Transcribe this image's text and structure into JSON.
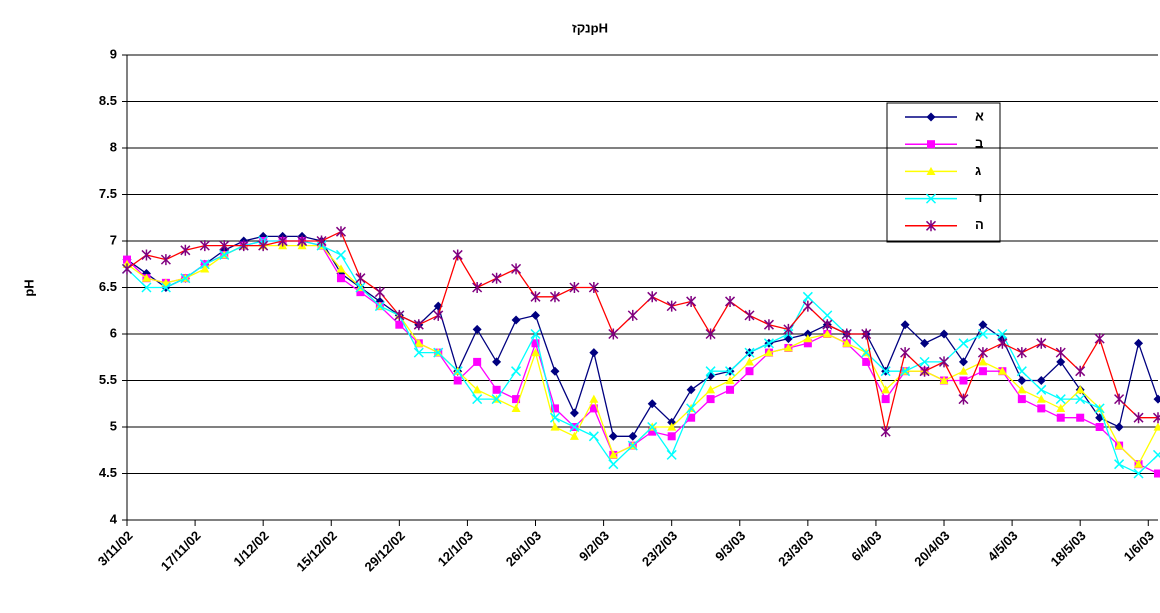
{
  "chart_data": {
    "type": "line",
    "title": "נקזpH",
    "ylabel": "pH",
    "x": [
      "3/11/02",
      "7/11/02",
      "11/11/02",
      "15/11/02",
      "19/11/02",
      "23/11/02",
      "27/11/02",
      "1/12/02",
      "5/12/02",
      "9/12/02",
      "13/12/02",
      "17/12/02",
      "21/12/02",
      "25/12/02",
      "29/12/02",
      "2/1/03",
      "6/1/03",
      "10/1/03",
      "14/1/03",
      "18/1/03",
      "22/1/03",
      "26/1/03",
      "30/1/03",
      "3/2/03",
      "7/2/03",
      "11/2/03",
      "15/2/03",
      "19/2/03",
      "23/2/03",
      "27/2/03",
      "3/3/03",
      "7/3/03",
      "11/3/03",
      "15/3/03",
      "19/3/03",
      "23/3/03",
      "27/3/03",
      "31/3/03",
      "4/4/03",
      "8/4/03",
      "12/4/03",
      "16/4/03",
      "20/4/03",
      "24/4/03",
      "28/4/03",
      "2/5/03",
      "6/5/03",
      "10/5/03",
      "14/5/03",
      "18/5/03",
      "22/5/03",
      "26/5/03",
      "30/5/03",
      "3/6/03"
    ],
    "xlim": [
      "3/11/02",
      "3/6/03"
    ],
    "xticks": [
      "3/11/02",
      "17/11/02",
      "1/12/02",
      "15/12/02",
      "29/12/02",
      "12/1/03",
      "26/1/03",
      "9/2/03",
      "23/2/03",
      "9/3/03",
      "23/3/03",
      "6/4/03",
      "20/4/03",
      "4/5/03",
      "18/5/03",
      "1/6/03"
    ],
    "ylim": [
      4,
      9
    ],
    "yticks": [
      4,
      4.5,
      5,
      5.5,
      6,
      6.5,
      7,
      7.5,
      8,
      8.5,
      9
    ],
    "grid": true,
    "legend": "upper-right",
    "series": [
      {
        "name": "א",
        "color": "#000080",
        "marker_color": "#000080",
        "marker": "diamond",
        "values": [
          6.8,
          6.65,
          6.5,
          6.6,
          6.75,
          6.9,
          7.0,
          7.05,
          7.05,
          7.05,
          7.0,
          6.65,
          6.5,
          6.35,
          6.2,
          6.1,
          6.3,
          5.6,
          6.05,
          5.7,
          6.15,
          6.2,
          5.6,
          5.15,
          5.8,
          4.9,
          4.9,
          5.25,
          5.05,
          5.4,
          5.55,
          5.6,
          5.8,
          5.9,
          5.95,
          6.0,
          6.1,
          6.0,
          6.0,
          5.6,
          6.1,
          5.9,
          6.0,
          5.7,
          6.1,
          5.95,
          5.5,
          5.5,
          5.7,
          5.4,
          5.1,
          5.0,
          5.9,
          5.3
        ]
      },
      {
        "name": "ב",
        "color": "#ff00ff",
        "marker_color": "#ff00ff",
        "marker": "square",
        "values": [
          6.8,
          6.6,
          6.55,
          6.6,
          6.75,
          6.85,
          6.95,
          7.0,
          7.0,
          7.0,
          6.95,
          6.6,
          6.45,
          6.3,
          6.1,
          5.9,
          5.8,
          5.5,
          5.7,
          5.4,
          5.3,
          5.9,
          5.2,
          5.0,
          5.2,
          4.7,
          4.8,
          4.95,
          4.9,
          5.1,
          5.3,
          5.4,
          5.6,
          5.8,
          5.85,
          5.9,
          6.0,
          5.9,
          5.7,
          5.3,
          5.6,
          5.6,
          5.5,
          5.5,
          5.6,
          5.6,
          5.3,
          5.2,
          5.1,
          5.1,
          5.0,
          4.8,
          4.6,
          4.5
        ]
      },
      {
        "name": "ג",
        "color": "#ffff00",
        "marker_color": "#ffff00",
        "marker": "triangle",
        "values": [
          6.75,
          6.6,
          6.55,
          6.6,
          6.7,
          6.85,
          6.95,
          6.95,
          6.95,
          6.95,
          6.95,
          6.7,
          6.5,
          6.3,
          6.2,
          5.9,
          5.8,
          5.6,
          5.4,
          5.3,
          5.2,
          5.8,
          5.0,
          4.9,
          5.3,
          4.7,
          4.8,
          5.0,
          5.0,
          5.2,
          5.4,
          5.5,
          5.7,
          5.8,
          5.85,
          5.95,
          6.0,
          5.9,
          5.8,
          5.4,
          5.6,
          5.6,
          5.5,
          5.6,
          5.7,
          5.6,
          5.4,
          5.3,
          5.2,
          5.4,
          5.2,
          4.8,
          4.6,
          5.0
        ]
      },
      {
        "name": "ד",
        "color": "#00ffff",
        "marker_color": "#00ffff",
        "marker": "x",
        "values": [
          6.7,
          6.5,
          6.5,
          6.6,
          6.75,
          6.85,
          6.95,
          7.0,
          7.0,
          7.0,
          6.95,
          6.85,
          6.5,
          6.3,
          6.2,
          5.8,
          5.8,
          5.6,
          5.3,
          5.3,
          5.6,
          6.0,
          5.1,
          5.0,
          4.9,
          4.6,
          4.8,
          5.0,
          4.7,
          5.2,
          5.6,
          5.6,
          5.8,
          5.9,
          6.0,
          6.4,
          6.2,
          6.0,
          5.8,
          5.6,
          5.6,
          5.7,
          5.7,
          5.9,
          6.0,
          6.0,
          5.6,
          5.4,
          5.3,
          5.3,
          5.2,
          4.6,
          4.5,
          4.7
        ]
      },
      {
        "name": "ה",
        "color": "#ff0000",
        "marker_color": "#800080",
        "marker": "star",
        "values": [
          6.7,
          6.85,
          6.8,
          6.9,
          6.95,
          6.95,
          6.95,
          6.95,
          7.0,
          7.0,
          7.0,
          7.1,
          6.6,
          6.45,
          6.2,
          6.1,
          6.2,
          6.85,
          6.5,
          6.6,
          6.7,
          6.4,
          6.4,
          6.5,
          6.5,
          6.0,
          6.2,
          6.4,
          6.3,
          6.35,
          6.0,
          6.35,
          6.2,
          6.1,
          6.05,
          6.3,
          6.1,
          6.0,
          6.0,
          4.95,
          5.8,
          5.6,
          5.7,
          5.3,
          5.8,
          5.9,
          5.8,
          5.9,
          5.8,
          5.6,
          5.95,
          5.3,
          5.1,
          5.1
        ]
      }
    ]
  }
}
